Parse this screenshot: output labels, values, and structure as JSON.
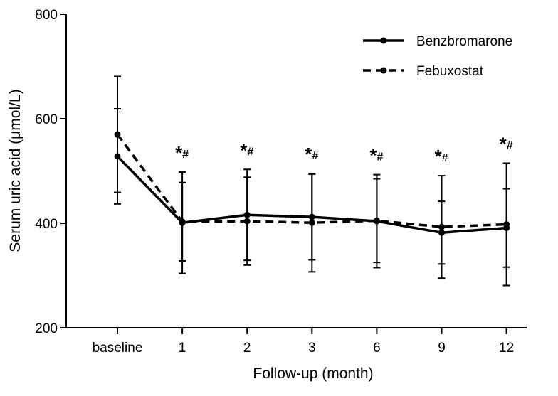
{
  "chart_data": {
    "type": "line",
    "title": "",
    "xlabel": "Follow-up (month)",
    "ylabel": "Serum uric acid (μmol/L)",
    "categories": [
      "baseline",
      "1",
      "2",
      "3",
      "6",
      "9",
      "12"
    ],
    "ylim": [
      200,
      800
    ],
    "yticks": [
      "200",
      "400",
      "600",
      "800"
    ],
    "grid": false,
    "legend_position": "top-right",
    "series": [
      {
        "name": "Benzbromarone",
        "style": "solid",
        "color": "#000000",
        "values": [
          528,
          401,
          416,
          412,
          404,
          382,
          391
        ],
        "sd": [
          91,
          97,
          87,
          82,
          89,
          60,
          75
        ]
      },
      {
        "name": "Febuxostat",
        "style": "dashed",
        "color": "#000000",
        "values": [
          570,
          403,
          404,
          401,
          405,
          393,
          398
        ],
        "sd": [
          111,
          75,
          84,
          94,
          80,
          98,
          117
        ]
      }
    ],
    "annotations": [
      "",
      "*#",
      "*#",
      "*#",
      "*#",
      "*#",
      "*#"
    ]
  }
}
